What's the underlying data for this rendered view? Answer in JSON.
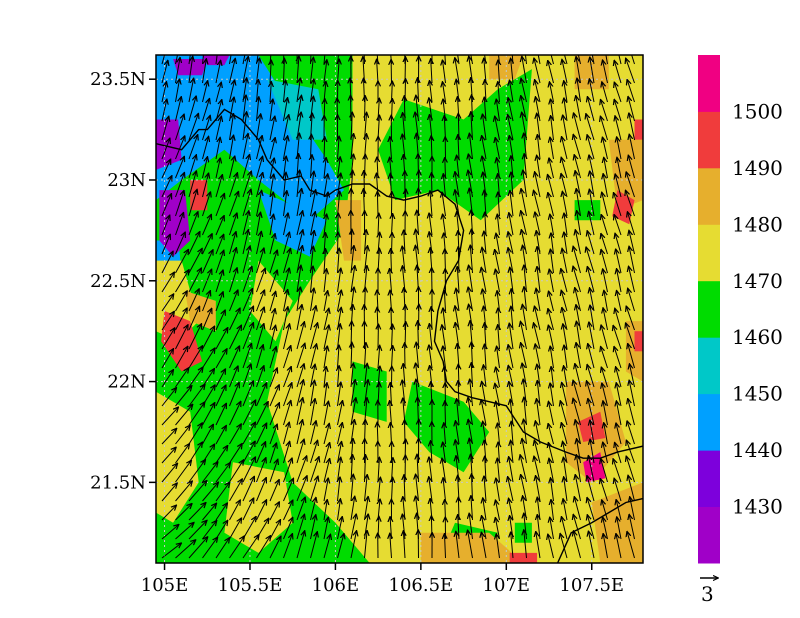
{
  "chart_data": {
    "type": "heatmap",
    "title": "",
    "xlabel": "",
    "ylabel": "",
    "x_range": [
      104.95,
      107.8
    ],
    "y_range": [
      21.1,
      23.62
    ],
    "x_ticks": [
      {
        "value": 105.0,
        "label": "105E"
      },
      {
        "value": 105.5,
        "label": "105.5E"
      },
      {
        "value": 106.0,
        "label": "106E"
      },
      {
        "value": 106.5,
        "label": "106.5E"
      },
      {
        "value": 107.0,
        "label": "107E"
      },
      {
        "value": 107.5,
        "label": "107.5E"
      }
    ],
    "y_ticks": [
      {
        "value": 21.5,
        "label": "21.5N"
      },
      {
        "value": 22.0,
        "label": "22N"
      },
      {
        "value": 22.5,
        "label": "22.5N"
      },
      {
        "value": 23.0,
        "label": "23N"
      },
      {
        "value": 23.5,
        "label": "23.5N"
      }
    ],
    "grid": true,
    "colorbar": {
      "placement": "right",
      "levels": [
        "1430",
        "1440",
        "1450",
        "1460",
        "1470",
        "1480",
        "1490",
        "1500"
      ],
      "colors": [
        "#a000c8",
        "#7d00dc",
        "#00a0ff",
        "#00c8c8",
        "#00dc00",
        "#e6dc32",
        "#e6af2d",
        "#f03c3c",
        "#f00082"
      ]
    },
    "vector_reference": {
      "label": "3",
      "magnitude": 3
    },
    "color_regions": [
      {
        "level": "1440",
        "color": "#00a0ff",
        "points": [
          [
            104.95,
            23.62
          ],
          [
            105.55,
            23.62
          ],
          [
            105.75,
            23.35
          ],
          [
            105.95,
            23.1
          ],
          [
            106.05,
            22.95
          ],
          [
            105.85,
            22.8
          ],
          [
            105.55,
            23.0
          ],
          [
            105.35,
            23.15
          ],
          [
            105.1,
            23.0
          ],
          [
            104.95,
            22.9
          ]
        ]
      },
      {
        "level": "1440",
        "color": "#00a0ff",
        "points": [
          [
            105.55,
            22.95
          ],
          [
            105.65,
            22.7
          ],
          [
            105.85,
            22.62
          ],
          [
            105.95,
            22.8
          ]
        ]
      },
      {
        "level": "1440",
        "color": "#00a0ff",
        "points": [
          [
            104.95,
            22.7
          ],
          [
            105.08,
            22.7
          ],
          [
            105.12,
            22.4
          ],
          [
            104.95,
            22.35
          ]
        ]
      },
      {
        "level": "1450",
        "color": "#00c8c8",
        "points": [
          [
            105.6,
            23.5
          ],
          [
            105.9,
            23.45
          ],
          [
            105.95,
            23.2
          ],
          [
            105.75,
            23.2
          ]
        ]
      },
      {
        "level": "1430",
        "color": "#a000c8",
        "points": [
          [
            104.95,
            23.3
          ],
          [
            105.08,
            23.3
          ],
          [
            105.1,
            23.1
          ],
          [
            104.95,
            23.05
          ]
        ]
      },
      {
        "level": "1430",
        "color": "#a000c8",
        "points": [
          [
            104.97,
            22.95
          ],
          [
            105.12,
            22.95
          ],
          [
            105.15,
            22.7
          ],
          [
            105.05,
            22.62
          ],
          [
            104.97,
            22.7
          ]
        ]
      },
      {
        "level": "1430",
        "color": "#a000c8",
        "points": [
          [
            105.05,
            23.6
          ],
          [
            105.25,
            23.6
          ],
          [
            105.22,
            23.52
          ],
          [
            105.08,
            23.52
          ]
        ]
      },
      {
        "level": "1430",
        "color": "#a000c8",
        "points": [
          [
            105.22,
            23.62
          ],
          [
            105.38,
            23.62
          ],
          [
            105.35,
            23.57
          ],
          [
            105.25,
            23.57
          ]
        ]
      },
      {
        "level": "1480",
        "color": "#e6dc32",
        "points": [
          [
            106.1,
            23.62
          ],
          [
            107.8,
            23.62
          ],
          [
            107.8,
            21.1
          ],
          [
            106.2,
            21.1
          ],
          [
            106.0,
            21.3
          ],
          [
            105.75,
            21.5
          ],
          [
            105.6,
            21.9
          ],
          [
            105.7,
            22.3
          ],
          [
            105.85,
            22.5
          ],
          [
            106.05,
            22.75
          ],
          [
            106.1,
            23.1
          ]
        ]
      },
      {
        "level": "1480",
        "color": "#e6dc32",
        "points": [
          [
            105.55,
            22.6
          ],
          [
            105.75,
            22.4
          ],
          [
            105.65,
            22.2
          ],
          [
            105.5,
            22.35
          ]
        ]
      },
      {
        "level": "1480",
        "color": "#e6dc32",
        "points": [
          [
            104.95,
            21.95
          ],
          [
            105.15,
            21.85
          ],
          [
            105.2,
            21.5
          ],
          [
            105.05,
            21.3
          ],
          [
            104.95,
            21.35
          ]
        ]
      },
      {
        "level": "1480",
        "color": "#e6dc32",
        "points": [
          [
            104.95,
            22.6
          ],
          [
            105.1,
            22.6
          ],
          [
            105.2,
            22.3
          ],
          [
            105.08,
            22.2
          ],
          [
            104.95,
            22.25
          ]
        ]
      },
      {
        "level": "1480",
        "color": "#e6dc32",
        "points": [
          [
            105.4,
            21.6
          ],
          [
            105.7,
            21.55
          ],
          [
            105.75,
            21.3
          ],
          [
            105.55,
            21.15
          ],
          [
            105.35,
            21.25
          ]
        ]
      },
      {
        "level": "1470",
        "color": "#00dc00",
        "points": [
          [
            106.4,
            23.4
          ],
          [
            106.75,
            23.3
          ],
          [
            106.95,
            23.45
          ],
          [
            107.15,
            23.55
          ],
          [
            107.1,
            23.0
          ],
          [
            106.85,
            22.8
          ],
          [
            106.6,
            22.95
          ],
          [
            106.35,
            22.9
          ],
          [
            106.25,
            23.15
          ]
        ]
      },
      {
        "level": "1470",
        "color": "#00dc00",
        "points": [
          [
            106.45,
            22.0
          ],
          [
            106.75,
            21.9
          ],
          [
            106.9,
            21.75
          ],
          [
            106.75,
            21.55
          ],
          [
            106.55,
            21.65
          ],
          [
            106.4,
            21.8
          ]
        ]
      },
      {
        "level": "1470",
        "color": "#00dc00",
        "points": [
          [
            106.1,
            22.1
          ],
          [
            106.3,
            22.05
          ],
          [
            106.3,
            21.8
          ],
          [
            106.1,
            21.85
          ]
        ]
      },
      {
        "level": "1470",
        "color": "#00dc00",
        "points": [
          [
            106.7,
            21.3
          ],
          [
            106.95,
            21.25
          ],
          [
            106.9,
            21.15
          ],
          [
            106.65,
            21.2
          ]
        ]
      },
      {
        "level": "1470",
        "color": "#00dc00",
        "points": [
          [
            107.05,
            21.3
          ],
          [
            107.15,
            21.3
          ],
          [
            107.15,
            21.2
          ],
          [
            107.05,
            21.2
          ]
        ]
      },
      {
        "level": "1470",
        "color": "#00dc00",
        "points": [
          [
            107.4,
            22.9
          ],
          [
            107.55,
            22.9
          ],
          [
            107.55,
            22.8
          ],
          [
            107.4,
            22.8
          ]
        ]
      },
      {
        "level": "1490",
        "color": "#e6af2d",
        "points": [
          [
            106.9,
            23.62
          ],
          [
            107.1,
            23.62
          ],
          [
            107.05,
            23.5
          ],
          [
            106.9,
            23.5
          ]
        ]
      },
      {
        "level": "1490",
        "color": "#e6af2d",
        "points": [
          [
            107.4,
            23.62
          ],
          [
            107.6,
            23.62
          ],
          [
            107.6,
            23.45
          ],
          [
            107.4,
            23.45
          ]
        ]
      },
      {
        "level": "1490",
        "color": "#e6af2d",
        "points": [
          [
            107.6,
            23.2
          ],
          [
            107.8,
            23.2
          ],
          [
            107.8,
            22.9
          ],
          [
            107.65,
            22.85
          ]
        ]
      },
      {
        "level": "1490",
        "color": "#e6af2d",
        "points": [
          [
            106.0,
            22.9
          ],
          [
            106.15,
            22.9
          ],
          [
            106.15,
            22.6
          ],
          [
            106.05,
            22.6
          ]
        ]
      },
      {
        "level": "1490",
        "color": "#e6af2d",
        "points": [
          [
            107.35,
            22.0
          ],
          [
            107.6,
            22.0
          ],
          [
            107.7,
            21.7
          ],
          [
            107.5,
            21.5
          ],
          [
            107.35,
            21.6
          ]
        ]
      },
      {
        "level": "1490",
        "color": "#e6af2d",
        "points": [
          [
            107.5,
            21.4
          ],
          [
            107.8,
            21.5
          ],
          [
            107.8,
            21.1
          ],
          [
            107.55,
            21.1
          ]
        ]
      },
      {
        "level": "1490",
        "color": "#e6af2d",
        "points": [
          [
            106.5,
            21.25
          ],
          [
            106.9,
            21.25
          ],
          [
            107.1,
            21.1
          ],
          [
            106.5,
            21.1
          ]
        ]
      },
      {
        "level": "1490",
        "color": "#e6af2d",
        "points": [
          [
            105.12,
            22.45
          ],
          [
            105.3,
            22.4
          ],
          [
            105.3,
            22.25
          ],
          [
            105.15,
            22.3
          ]
        ]
      },
      {
        "level": "1490",
        "color": "#e6af2d",
        "points": [
          [
            107.7,
            22.3
          ],
          [
            107.8,
            22.3
          ],
          [
            107.8,
            22.0
          ],
          [
            107.7,
            22.05
          ]
        ]
      },
      {
        "level": "1500",
        "color": "#f03c3c",
        "points": [
          [
            105.0,
            22.35
          ],
          [
            105.15,
            22.3
          ],
          [
            105.22,
            22.1
          ],
          [
            105.1,
            22.05
          ],
          [
            104.98,
            22.2
          ]
        ]
      },
      {
        "level": "1500",
        "color": "#f03c3c",
        "points": [
          [
            105.15,
            23.0
          ],
          [
            105.25,
            23.0
          ],
          [
            105.25,
            22.85
          ],
          [
            105.15,
            22.85
          ]
        ]
      },
      {
        "level": "1500",
        "color": "#f03c3c",
        "points": [
          [
            107.65,
            22.95
          ],
          [
            107.75,
            22.9
          ],
          [
            107.72,
            22.78
          ],
          [
            107.62,
            22.82
          ]
        ]
      },
      {
        "level": "1500",
        "color": "#f03c3c",
        "points": [
          [
            107.42,
            21.8
          ],
          [
            107.55,
            21.85
          ],
          [
            107.58,
            21.72
          ],
          [
            107.45,
            21.7
          ]
        ]
      },
      {
        "level": "1500",
        "color": "#f03c3c",
        "points": [
          [
            107.75,
            22.25
          ],
          [
            107.8,
            22.25
          ],
          [
            107.8,
            22.15
          ],
          [
            107.75,
            22.15
          ]
        ]
      },
      {
        "level": "1500",
        "color": "#f03c3c",
        "points": [
          [
            107.02,
            21.15
          ],
          [
            107.18,
            21.15
          ],
          [
            107.18,
            21.1
          ],
          [
            107.02,
            21.1
          ]
        ]
      },
      {
        "level": "1500",
        "color": "#f03c3c",
        "points": [
          [
            107.75,
            23.3
          ],
          [
            107.8,
            23.3
          ],
          [
            107.8,
            23.2
          ],
          [
            107.75,
            23.2
          ]
        ]
      },
      {
        "level": "1500",
        "color": "#f00082",
        "points": [
          [
            107.45,
            21.6
          ],
          [
            107.55,
            21.65
          ],
          [
            107.58,
            21.52
          ],
          [
            107.47,
            21.5
          ]
        ]
      }
    ],
    "boundary_lines": [
      {
        "name": "border",
        "points": [
          [
            104.95,
            23.18
          ],
          [
            105.1,
            23.15
          ],
          [
            105.2,
            23.25
          ],
          [
            105.25,
            23.25
          ],
          [
            105.35,
            23.35
          ],
          [
            105.45,
            23.3
          ],
          [
            105.55,
            23.2
          ],
          [
            105.6,
            23.1
          ],
          [
            105.7,
            23.0
          ],
          [
            105.8,
            23.02
          ],
          [
            105.85,
            22.95
          ],
          [
            105.95,
            22.92
          ],
          [
            106.0,
            22.95
          ],
          [
            106.1,
            22.98
          ],
          [
            106.2,
            22.98
          ],
          [
            106.3,
            22.92
          ],
          [
            106.4,
            22.9
          ],
          [
            106.5,
            22.92
          ],
          [
            106.6,
            22.95
          ],
          [
            106.7,
            22.88
          ],
          [
            106.75,
            22.75
          ],
          [
            106.72,
            22.6
          ],
          [
            106.65,
            22.5
          ],
          [
            106.6,
            22.35
          ],
          [
            106.58,
            22.2
          ],
          [
            106.63,
            22.1
          ],
          [
            106.65,
            22.0
          ],
          [
            106.7,
            21.95
          ],
          [
            106.8,
            21.92
          ],
          [
            106.9,
            21.9
          ],
          [
            107.0,
            21.88
          ],
          [
            107.1,
            21.75
          ],
          [
            107.2,
            21.7
          ],
          [
            107.35,
            21.65
          ],
          [
            107.45,
            21.62
          ],
          [
            107.55,
            21.62
          ],
          [
            107.65,
            21.65
          ],
          [
            107.8,
            21.68
          ]
        ]
      },
      {
        "name": "coast",
        "points": [
          [
            107.3,
            21.1
          ],
          [
            107.38,
            21.25
          ],
          [
            107.5,
            21.3
          ],
          [
            107.6,
            21.35
          ],
          [
            107.7,
            21.4
          ],
          [
            107.8,
            21.42
          ]
        ]
      }
    ]
  }
}
